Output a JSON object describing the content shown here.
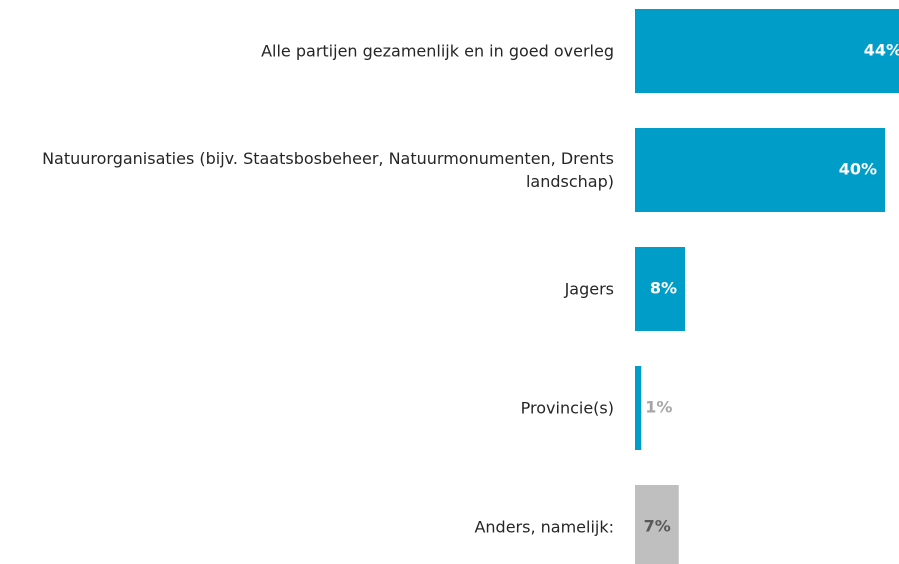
{
  "chart_data": {
    "type": "barh",
    "categories": [
      "Alle partijen gezamenlijk en in goed overleg",
      "Natuurorganisaties (bijv. Staatsbosbeheer, Natuurmonumenten, Drents landschap)",
      "Jagers",
      "Provincie(s)",
      "Anders, namelijk:"
    ],
    "values": [
      44,
      40,
      8,
      1,
      7
    ],
    "value_labels": [
      "44%",
      "40%",
      "8%",
      "1%",
      "7%"
    ],
    "colors": [
      "#009dc8",
      "#009dc8",
      "#009dc8",
      "#009dc8",
      "#bfbfbf"
    ],
    "label_colors": [
      "#ffffff",
      "#ffffff",
      "#ffffff",
      "#a6a6a6",
      "#595959"
    ]
  }
}
